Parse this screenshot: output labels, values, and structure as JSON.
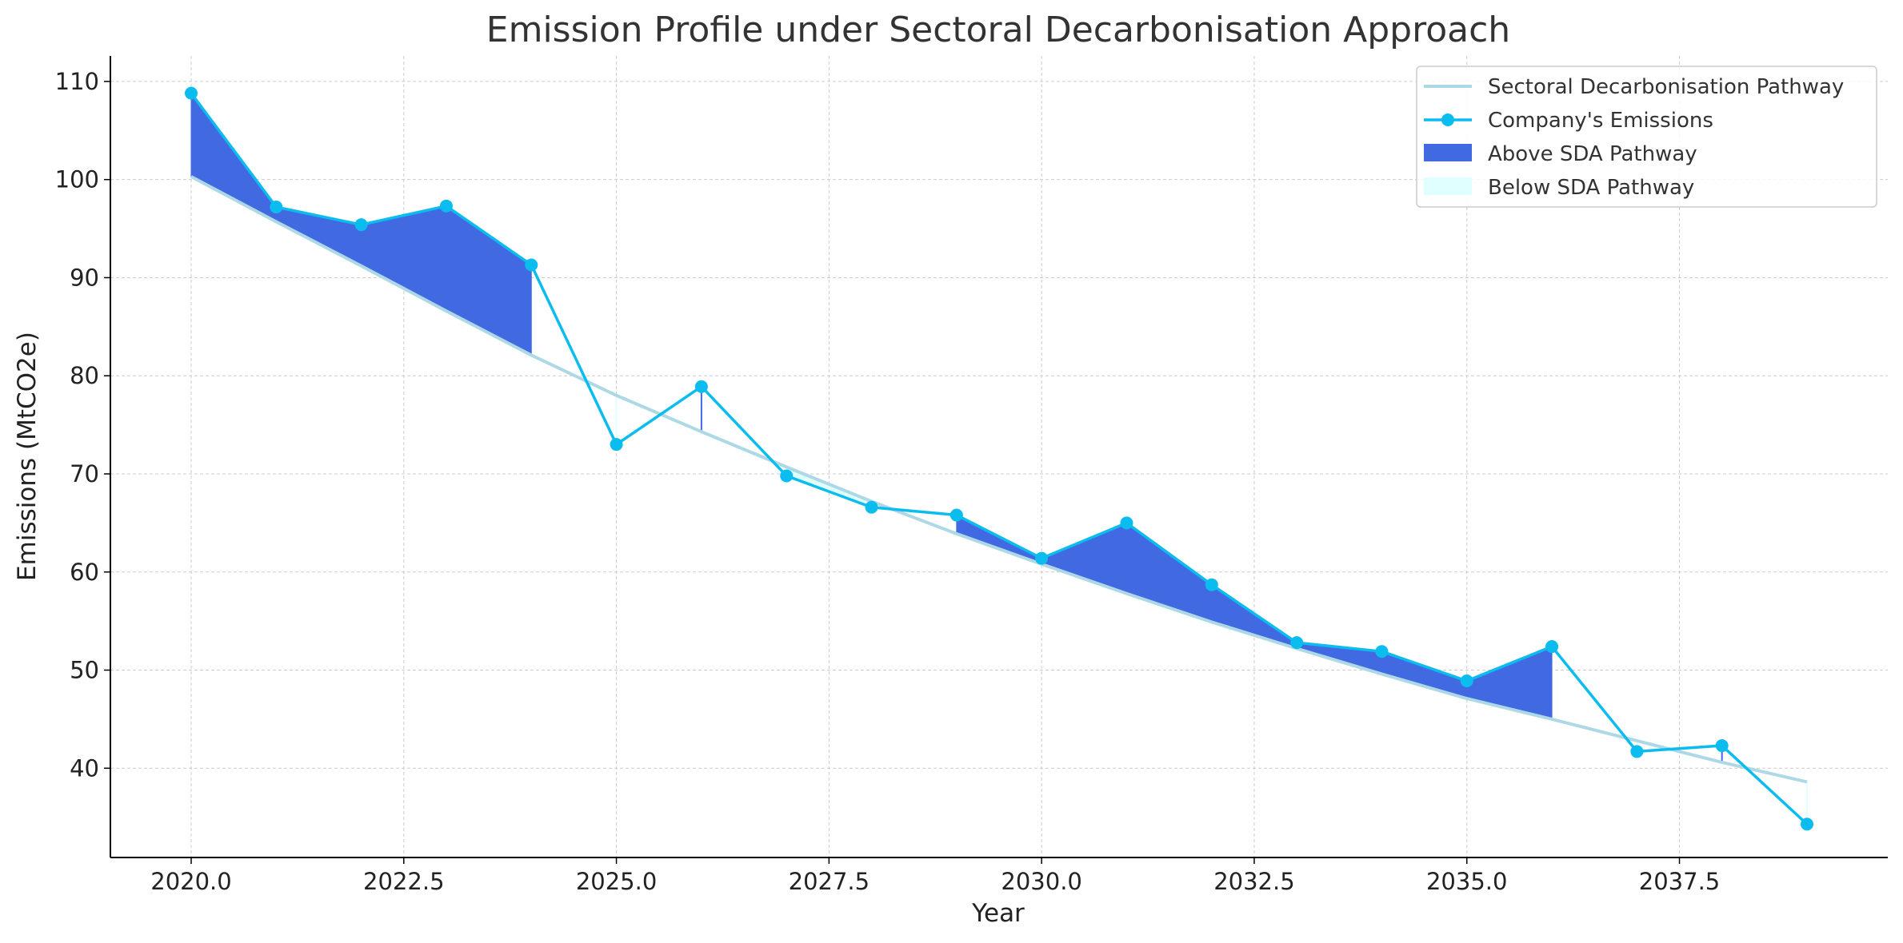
{
  "chart_data": {
    "type": "line",
    "title": "Emission Profile under Sectoral Decarbonisation Approach",
    "xlabel": "Year",
    "ylabel": "Emissions (MtCO2e)",
    "xlim": [
      2019.05,
      2039.95
    ],
    "ylim": [
      30.9,
      112.6
    ],
    "x_ticks": [
      2020.0,
      2022.5,
      2025.0,
      2027.5,
      2030.0,
      2032.5,
      2035.0,
      2037.5
    ],
    "x_tick_labels": [
      "2020.0",
      "2022.5",
      "2025.0",
      "2027.5",
      "2030.0",
      "2032.5",
      "2035.0",
      "2037.5"
    ],
    "y_ticks": [
      40,
      50,
      60,
      70,
      80,
      90,
      100,
      110
    ],
    "y_tick_labels": [
      "40",
      "50",
      "60",
      "70",
      "80",
      "90",
      "100",
      "110"
    ],
    "grid": true,
    "legend_position": "top-right",
    "x": [
      2020,
      2021,
      2022,
      2023,
      2024,
      2025,
      2026,
      2027,
      2028,
      2029,
      2030,
      2031,
      2032,
      2033,
      2034,
      2035,
      2036,
      2037,
      2038,
      2039
    ],
    "series": [
      {
        "name": "Sectoral Decarbonisation Pathway",
        "color": "#add8e6",
        "values": [
          100.3,
          95.7,
          91.2,
          86.6,
          82.1,
          78.0,
          74.3,
          70.7,
          67.2,
          63.9,
          60.8,
          57.8,
          54.9,
          52.2,
          49.6,
          47.1,
          45.0,
          42.8,
          40.6,
          38.6
        ]
      },
      {
        "name": "Company's Emissions",
        "color": "#0bbcef",
        "marker": "circle",
        "values": [
          108.8,
          97.2,
          95.4,
          97.3,
          91.3,
          73.0,
          78.9,
          69.8,
          66.6,
          65.8,
          61.4,
          65.0,
          58.7,
          52.8,
          51.9,
          48.9,
          52.4,
          41.7,
          42.3,
          34.3
        ]
      }
    ],
    "fills": [
      {
        "name": "Above SDA Pathway",
        "color": "#4169e1",
        "where": "company > pathway"
      },
      {
        "name": "Below SDA Pathway",
        "color": "#e0ffff",
        "where": "company < pathway"
      }
    ]
  }
}
